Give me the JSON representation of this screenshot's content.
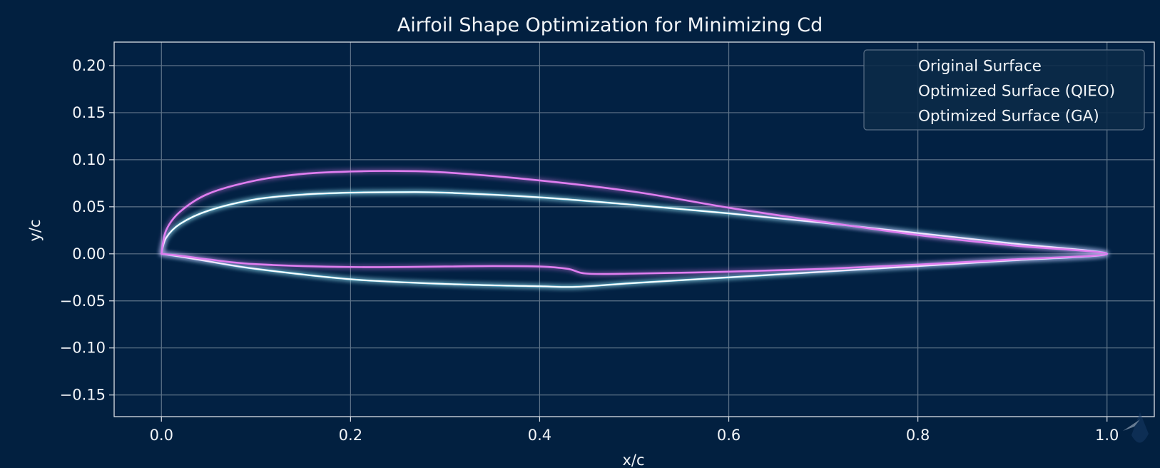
{
  "chart_data": {
    "type": "line",
    "title": "Airfoil Shape Optimization for Minimizing Cd",
    "xlabel": "x/c",
    "ylabel": "y/c",
    "xlim": [
      -0.05,
      1.05
    ],
    "ylim": [
      -0.173,
      0.225
    ],
    "xticks": [
      0.0,
      0.2,
      0.4,
      0.6,
      0.8,
      1.0
    ],
    "xtick_labels": [
      "0.0",
      "0.2",
      "0.4",
      "0.6",
      "0.8",
      "1.0"
    ],
    "yticks": [
      0.2,
      0.15,
      0.1,
      0.05,
      0.0,
      -0.05,
      -0.1,
      -0.15
    ],
    "ytick_labels": [
      "0.20",
      "0.15",
      "0.10",
      "0.05",
      "0.00",
      "−0.05",
      "−0.10",
      "−0.15"
    ],
    "grid": true,
    "legend_position": "top-right",
    "series": [
      {
        "name": "Original Surface",
        "color": "#ffffff",
        "x": [
          0,
          0.005,
          0.02,
          0.05,
          0.1,
          0.15,
          0.2,
          0.25,
          0.3,
          0.4,
          0.5,
          0.6,
          0.7,
          0.8,
          0.9,
          1.0,
          0.9,
          0.8,
          0.7,
          0.6,
          0.5,
          0.44,
          0.4,
          0.3,
          0.2,
          0.1,
          0.05,
          0.02,
          0.005,
          0
        ],
        "y": [
          0,
          0.017,
          0.032,
          0.046,
          0.058,
          0.063,
          0.065,
          0.0655,
          0.065,
          0.06,
          0.052,
          0.043,
          0.033,
          0.022,
          0.011,
          0,
          -0.007,
          -0.013,
          -0.019,
          -0.025,
          -0.031,
          -0.035,
          -0.0345,
          -0.032,
          -0.027,
          -0.016,
          -0.008,
          -0.003,
          -0.0008,
          0
        ]
      },
      {
        "name": "Optimized Surface (QIEO)",
        "color": "#3fd3f5",
        "x": [
          0,
          0.005,
          0.02,
          0.05,
          0.1,
          0.15,
          0.2,
          0.25,
          0.3,
          0.4,
          0.5,
          0.6,
          0.7,
          0.8,
          0.9,
          1.0,
          0.9,
          0.8,
          0.7,
          0.6,
          0.5,
          0.44,
          0.4,
          0.3,
          0.2,
          0.1,
          0.05,
          0.02,
          0.005,
          0
        ],
        "y": [
          0,
          0.017,
          0.032,
          0.046,
          0.058,
          0.063,
          0.065,
          0.0655,
          0.065,
          0.06,
          0.052,
          0.043,
          0.033,
          0.022,
          0.011,
          0,
          -0.007,
          -0.013,
          -0.019,
          -0.025,
          -0.031,
          -0.035,
          -0.0345,
          -0.032,
          -0.027,
          -0.016,
          -0.008,
          -0.003,
          -0.0008,
          0
        ]
      },
      {
        "name": "Optimized Surface (GA)",
        "color": "#e07ef0",
        "x": [
          0,
          0.005,
          0.02,
          0.05,
          0.1,
          0.15,
          0.2,
          0.25,
          0.3,
          0.4,
          0.5,
          0.6,
          0.7,
          0.8,
          0.9,
          1.0,
          0.9,
          0.8,
          0.7,
          0.6,
          0.5,
          0.45,
          0.43,
          0.4,
          0.35,
          0.3,
          0.2,
          0.1,
          0.05,
          0.02,
          0
        ],
        "y": [
          0,
          0.025,
          0.045,
          0.064,
          0.078,
          0.085,
          0.0875,
          0.088,
          0.0865,
          0.078,
          0.066,
          0.049,
          0.034,
          0.02,
          0.009,
          0,
          -0.006,
          -0.0115,
          -0.016,
          -0.019,
          -0.021,
          -0.021,
          -0.016,
          -0.0135,
          -0.013,
          -0.0135,
          -0.014,
          -0.011,
          -0.006,
          -0.002,
          0
        ]
      }
    ]
  }
}
